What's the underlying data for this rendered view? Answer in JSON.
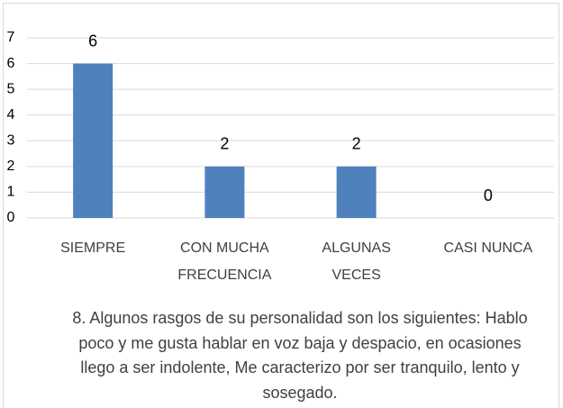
{
  "chart_data": {
    "type": "bar",
    "title": "8. Algunos rasgos de su personalidad son los siguientes: Hablo poco y me gusta hablar en voz baja y despacio, en ocasiones llego a ser indolente, Me caracterizo por ser tranquilo, lento y sosegado.",
    "categories": [
      "SIEMPRE",
      "CON MUCHA FRECUENCIA",
      "ALGUNAS VECES",
      "CASI NUNCA"
    ],
    "values": [
      6,
      2,
      2,
      0
    ],
    "color": "#4f81bd",
    "ylim": [
      0,
      7
    ],
    "yticks": [
      0,
      1,
      2,
      3,
      4,
      5,
      6,
      7
    ],
    "grid": true
  }
}
